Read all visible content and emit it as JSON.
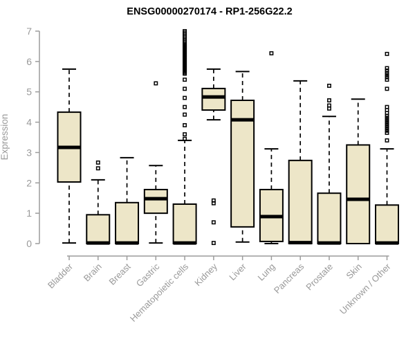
{
  "chart_data": {
    "type": "boxplot",
    "title": "ENSG00000270174 - RP1-256G22.2",
    "ylabel": "Expression",
    "xlabel": "",
    "ylim": [
      0,
      7
    ],
    "yticks": [
      0,
      1,
      2,
      3,
      4,
      5,
      6,
      7
    ],
    "grid": false,
    "legend": "none",
    "categories": [
      "Bladder",
      "Brain",
      "Breast",
      "Gastric",
      "Hematopoietic cells",
      "Kidney",
      "Liver",
      "Lung",
      "Pancreas",
      "Prostate",
      "Skin",
      "Unknown / Other"
    ],
    "series": [
      {
        "name": "Bladder",
        "low": 0.02,
        "q1": 2.03,
        "median": 3.17,
        "q3": 4.33,
        "high": 5.75,
        "outliers": []
      },
      {
        "name": "Brain",
        "low": 0.0,
        "q1": 0.0,
        "median": 0.02,
        "q3": 0.95,
        "high": 2.1,
        "outliers": [
          2.48,
          2.67
        ]
      },
      {
        "name": "Breast",
        "low": 0.0,
        "q1": 0.0,
        "median": 0.02,
        "q3": 1.35,
        "high": 2.83,
        "outliers": []
      },
      {
        "name": "Gastric",
        "low": 0.02,
        "q1": 1.0,
        "median": 1.48,
        "q3": 1.78,
        "high": 2.57,
        "outliers": [
          5.28
        ]
      },
      {
        "name": "Hematopoietic cells",
        "low": 0.0,
        "q1": 0.0,
        "median": 0.02,
        "q3": 1.3,
        "high": 3.4,
        "outliers": [
          3.45,
          3.6,
          3.9,
          4.25,
          4.5,
          4.8,
          5.1,
          5.4,
          5.6,
          5.64,
          5.68,
          5.72,
          5.76,
          5.8,
          5.84,
          5.88,
          5.92,
          5.96,
          6.0,
          6.04,
          6.08,
          6.12,
          6.16,
          6.2,
          6.24,
          6.28,
          6.32,
          6.36,
          6.4,
          6.44,
          6.48,
          6.52,
          6.56,
          6.6,
          6.65,
          6.7,
          6.75,
          6.8,
          6.85,
          6.9,
          6.95,
          7.0
        ]
      },
      {
        "name": "Kidney",
        "low": 4.08,
        "q1": 4.4,
        "median": 4.83,
        "q3": 5.11,
        "high": 5.75,
        "outliers": [
          1.42,
          1.33,
          0.7,
          0.02
        ]
      },
      {
        "name": "Liver",
        "low": 0.05,
        "q1": 0.55,
        "median": 4.08,
        "q3": 4.72,
        "high": 5.67,
        "outliers": []
      },
      {
        "name": "Lung",
        "low": 0.0,
        "q1": 0.07,
        "median": 0.89,
        "q3": 1.78,
        "high": 3.12,
        "outliers": [
          6.27
        ]
      },
      {
        "name": "Pancreas",
        "low": 0.0,
        "q1": 0.0,
        "median": 0.03,
        "q3": 2.74,
        "high": 5.36,
        "outliers": []
      },
      {
        "name": "Prostate",
        "low": 0.0,
        "q1": 0.0,
        "median": 0.02,
        "q3": 1.66,
        "high": 4.19,
        "outliers": [
          4.45,
          4.55,
          4.72,
          5.2
        ]
      },
      {
        "name": "Skin",
        "low": 0.0,
        "q1": 0.0,
        "median": 1.46,
        "q3": 3.25,
        "high": 4.76,
        "outliers": []
      },
      {
        "name": "Unknown / Other",
        "low": 0.0,
        "q1": 0.0,
        "median": 0.02,
        "q3": 1.27,
        "high": 3.12,
        "outliers": [
          3.4,
          3.65,
          3.72,
          3.79,
          3.86,
          3.93,
          4.0,
          4.07,
          4.14,
          4.21,
          4.3,
          4.4,
          4.5,
          5.1,
          5.4,
          5.48,
          5.55,
          5.62,
          5.7,
          5.78,
          6.25
        ]
      }
    ],
    "colors": {
      "box_fill": "#EDE6C8",
      "box_border": "#000000",
      "median": "#000000",
      "whisker": "#000000",
      "axis": "#9C9C9C",
      "tick_label": "#999999",
      "title": "#000000"
    }
  }
}
